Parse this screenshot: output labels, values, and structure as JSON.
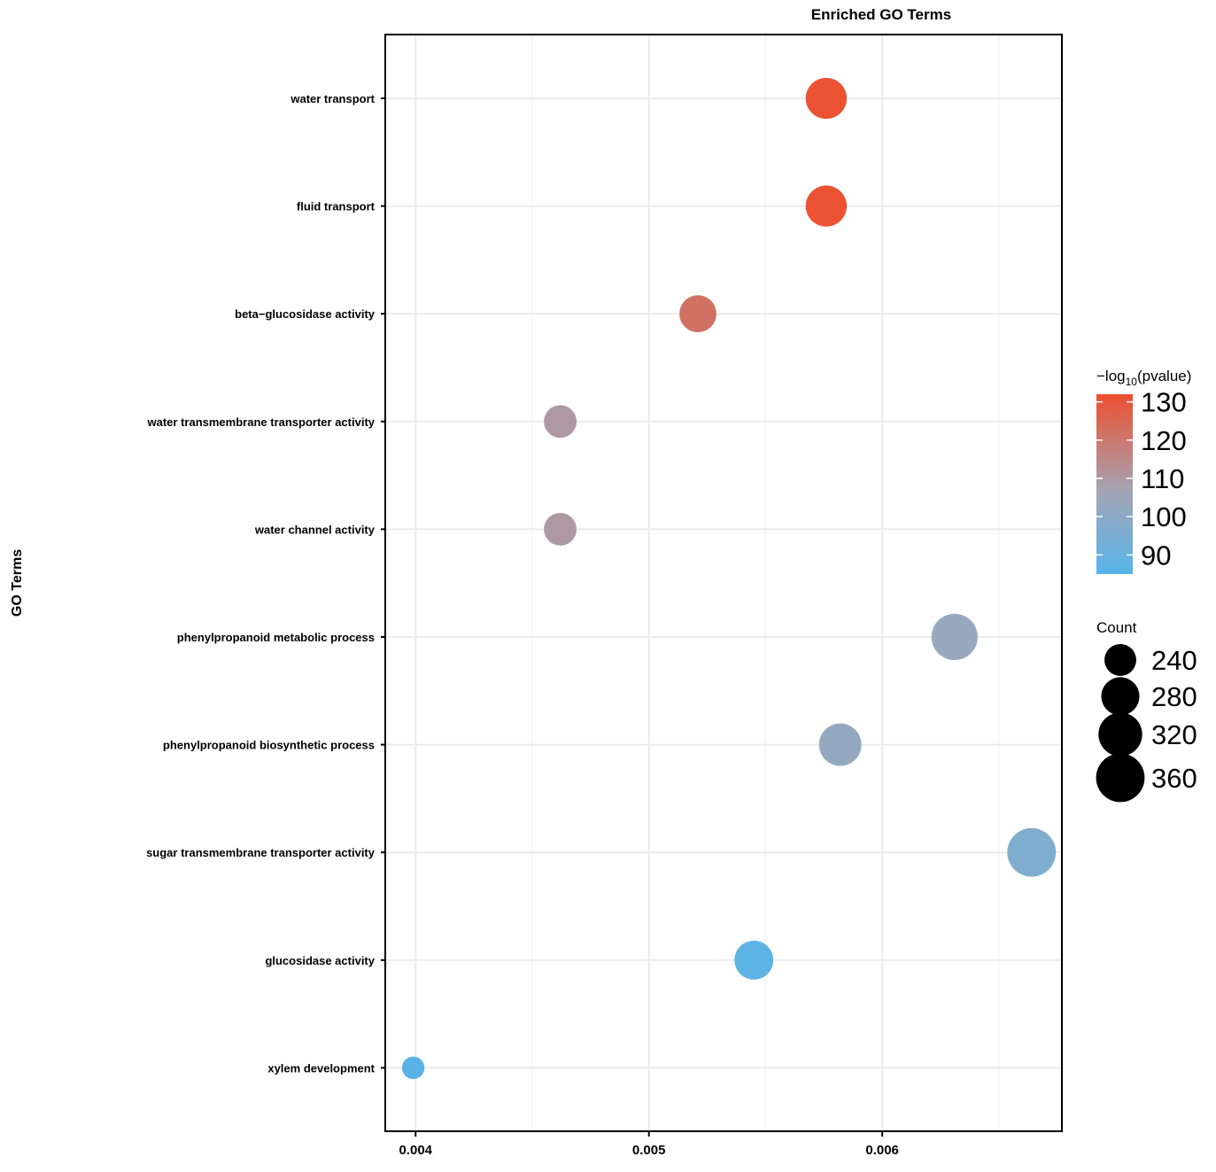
{
  "chart_data": {
    "type": "scatter",
    "title": "Enriched GO Terms",
    "xlabel": "",
    "ylabel": "GO Terms",
    "xlim": [
      0.00387,
      0.00677
    ],
    "xticks": [
      0.004,
      0.005,
      0.006
    ],
    "xtick_labels": [
      "0.004",
      "0.005",
      "0.006"
    ],
    "grid": true,
    "categories": [
      "water transport",
      "fluid transport",
      "beta−glucosidase activity",
      "water transmembrane transporter activity",
      "water channel activity",
      "phenylpropanoid metabolic process",
      "phenylpropanoid biosynthetic process",
      "sugar transmembrane transporter activity",
      "glucosidase activity",
      "xylem development"
    ],
    "points": [
      {
        "term": "water transport",
        "x": 0.00576,
        "neglog10p": 131,
        "count": 300
      },
      {
        "term": "fluid transport",
        "x": 0.00576,
        "neglog10p": 131,
        "count": 300
      },
      {
        "term": "beta−glucosidase activity",
        "x": 0.00521,
        "neglog10p": 122,
        "count": 272
      },
      {
        "term": "water transmembrane transporter activity",
        "x": 0.00462,
        "neglog10p": 110,
        "count": 245
      },
      {
        "term": "water channel activity",
        "x": 0.00462,
        "neglog10p": 110,
        "count": 245
      },
      {
        "term": "phenylpropanoid metabolic process",
        "x": 0.00631,
        "neglog10p": 103,
        "count": 340
      },
      {
        "term": "phenylpropanoid biosynthetic process",
        "x": 0.00582,
        "neglog10p": 102,
        "count": 310
      },
      {
        "term": "sugar transmembrane transporter activity",
        "x": 0.00664,
        "neglog10p": 96,
        "count": 360
      },
      {
        "term": "glucosidase activity",
        "x": 0.00545,
        "neglog10p": 87,
        "count": 285
      },
      {
        "term": "xylem development",
        "x": 0.00399,
        "neglog10p": 86,
        "count": 195
      }
    ],
    "color_legend": {
      "title_prefix": "−log",
      "title_sub": "10",
      "title_suffix": "(pvalue)",
      "ticks": [
        130,
        120,
        110,
        100,
        90
      ],
      "tick_labels": [
        "130",
        "120",
        "110",
        "100",
        "90"
      ],
      "range": [
        85,
        132
      ],
      "low_color": "#56B4E9",
      "mid_color": "#A3A6B7",
      "high_color": "#EE4F2F"
    },
    "size_legend": {
      "title": "Count",
      "values": [
        240,
        280,
        320,
        360
      ],
      "labels": [
        "240",
        "280",
        "320",
        "360"
      ]
    }
  }
}
